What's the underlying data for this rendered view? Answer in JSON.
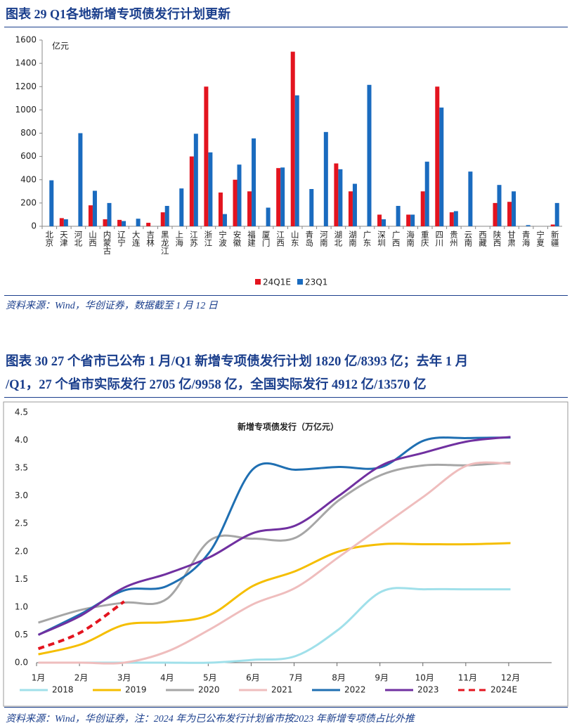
{
  "chart_data": [
    {
      "type": "bar",
      "caption": "图表 29   Q1各地新增专项债发行计划更新",
      "unit": "亿元",
      "source": "资料来源：Wind，华创证券，数据截至 1 月 12 日",
      "categories": [
        "北京",
        "天津",
        "河北",
        "山西",
        "内蒙古",
        "辽宁",
        "大连",
        "吉林",
        "黑龙江",
        "上海",
        "江苏",
        "浙江",
        "宁波",
        "安徽",
        "福建",
        "厦门",
        "江西",
        "山东",
        "青岛",
        "河南",
        "湖北",
        "湖南",
        "广东",
        "深圳",
        "广西",
        "海南",
        "重庆",
        "四川",
        "贵州",
        "云南",
        "西藏",
        "陕西",
        "甘肃",
        "青海",
        "宁夏",
        "新疆"
      ],
      "series": [
        {
          "name": "24Q1E",
          "color": "#e3141f",
          "values": [
            0,
            70,
            0,
            180,
            60,
            55,
            0,
            30,
            120,
            0,
            600,
            1200,
            290,
            400,
            300,
            0,
            500,
            1500,
            0,
            0,
            540,
            300,
            0,
            100,
            0,
            100,
            300,
            1200,
            120,
            0,
            0,
            200,
            210,
            0,
            0,
            15
          ]
        },
        {
          "name": "23Q1",
          "color": "#1a6bbf",
          "values": [
            395,
            60,
            800,
            305,
            200,
            45,
            65,
            0,
            175,
            325,
            795,
            635,
            105,
            530,
            755,
            160,
            505,
            1125,
            320,
            810,
            490,
            365,
            1215,
            60,
            175,
            100,
            555,
            1020,
            130,
            470,
            0,
            355,
            300,
            10,
            0,
            200
          ]
        }
      ],
      "ylim": [
        0,
        1600
      ],
      "yticks": [
        0,
        200,
        400,
        600,
        800,
        1000,
        1200,
        1400,
        1600
      ],
      "legend": "bottom"
    },
    {
      "type": "line",
      "caption": [
        "图表 30    27 个省市已公布 1 月/Q1 新增专项债发行计划 1820 亿/8393 亿；去年 1 月",
        "/Q1，27 个省市实际发行 2705 亿/9958 亿，全国实际发行 4912 亿/13570 亿"
      ],
      "title": "新增专项债发行（万亿元）",
      "source": "资料来源：Wind，华创证券，注：2024 年为已公布发行计划省市按2023 年新增专项债占比外推",
      "categories": [
        "1月",
        "2月",
        "3月",
        "4月",
        "5月",
        "6月",
        "7月",
        "8月",
        "9月",
        "10月",
        "11月",
        "12月"
      ],
      "series": [
        {
          "name": "2018",
          "color": "#a0e0ea",
          "values": [
            0,
            0,
            0,
            0,
            0,
            0.05,
            0.12,
            0.6,
            1.28,
            1.32,
            1.32,
            1.32
          ]
        },
        {
          "name": "2019",
          "color": "#f5be00",
          "values": [
            0.15,
            0.33,
            0.68,
            0.73,
            0.86,
            1.38,
            1.65,
            2.0,
            2.13,
            2.13,
            2.13,
            2.15
          ]
        },
        {
          "name": "2020",
          "color": "#a6a6a6",
          "values": [
            0.72,
            0.95,
            1.08,
            1.15,
            2.2,
            2.23,
            2.25,
            2.92,
            3.38,
            3.55,
            3.55,
            3.6
          ]
        },
        {
          "name": "2021",
          "color": "#efbdbd",
          "values": [
            0,
            0,
            0,
            0.2,
            0.6,
            1.05,
            1.35,
            1.9,
            2.45,
            3.0,
            3.55,
            3.58
          ]
        },
        {
          "name": "2022",
          "color": "#1f6fb2",
          "values": [
            0.5,
            0.88,
            1.3,
            1.38,
            2.0,
            3.48,
            3.47,
            3.52,
            3.52,
            4.0,
            4.04,
            4.05
          ]
        },
        {
          "name": "2023",
          "color": "#7030a0",
          "values": [
            0.5,
            0.85,
            1.35,
            1.6,
            1.9,
            2.33,
            2.47,
            3.0,
            3.55,
            3.78,
            3.98,
            4.06
          ]
        },
        {
          "name": "2024E",
          "color": "#e3141f",
          "dashed": true,
          "values": [
            0.25,
            0.55,
            1.1,
            null,
            null,
            null,
            null,
            null,
            null,
            null,
            null,
            null
          ]
        }
      ],
      "ylim": [
        0,
        4.5
      ],
      "yticks": [
        {
          "value": 0,
          "label": "0.0"
        },
        0.5,
        {
          "value": 1,
          "label": "1.0"
        },
        1.5,
        {
          "value": 2,
          "label": "2.0"
        },
        2.5,
        {
          "value": 3,
          "label": "3.0"
        },
        3.5,
        {
          "value": 4,
          "label": "4.0"
        },
        4.5
      ],
      "legend": "bottom"
    }
  ]
}
